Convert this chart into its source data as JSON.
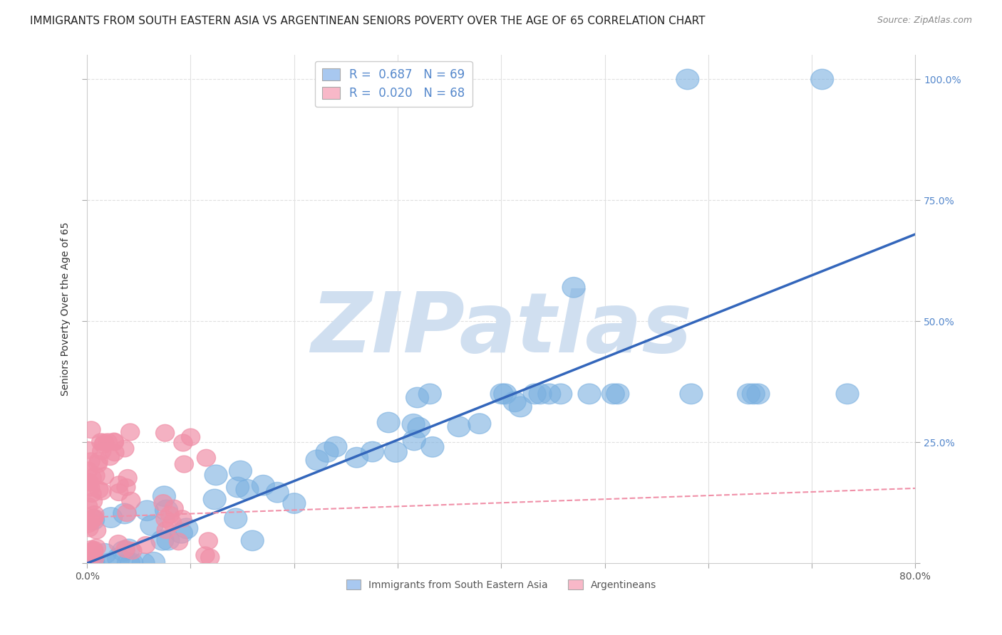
{
  "title": "IMMIGRANTS FROM SOUTH EASTERN ASIA VS ARGENTINEAN SENIORS POVERTY OVER THE AGE OF 65 CORRELATION CHART",
  "source": "Source: ZipAtlas.com",
  "ylabel": "Seniors Poverty Over the Age of 65",
  "xlim": [
    0.0,
    0.8
  ],
  "ylim": [
    0.0,
    1.05
  ],
  "legend_color1": "#a8c8f0",
  "legend_color2": "#f8b8c8",
  "series1_color": "#7ab0e0",
  "series2_color": "#f090a8",
  "line1_color": "#3366bb",
  "line2_color": "#f090a8",
  "background_color": "#ffffff",
  "grid_color": "#e0e0e0",
  "watermark": "ZIPatlas",
  "watermark_color": "#d0dff0",
  "series1_label": "Immigrants from South Eastern Asia",
  "series2_label": "Argentineans",
  "R1": 0.687,
  "R2": 0.02,
  "N1": 69,
  "N2": 68,
  "title_fontsize": 11,
  "axis_label_fontsize": 10,
  "tick_fontsize": 10,
  "right_ytick_labels": [
    "",
    "25.0%",
    "50.0%",
    "75.0%",
    "100.0%"
  ],
  "right_ytick_values": [
    0.0,
    0.25,
    0.5,
    0.75,
    1.0
  ]
}
